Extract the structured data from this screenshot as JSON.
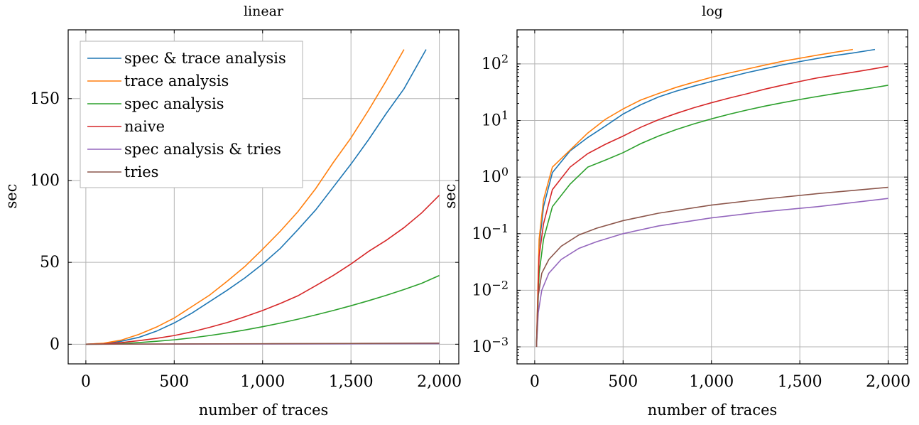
{
  "chart_data": [
    {
      "type": "line",
      "title": "linear",
      "xlabel": "number of traces",
      "ylabel": "sec",
      "xscale": "linear",
      "yscale": "linear",
      "xlim": [
        -100,
        2110
      ],
      "ylim": [
        -12,
        192
      ],
      "xticks": [
        0,
        500,
        1000,
        1500,
        2000
      ],
      "xtick_labels": [
        "0",
        "500",
        "1,000",
        "1,500",
        "2,000"
      ],
      "yticks": [
        0,
        50,
        100,
        150
      ],
      "ytick_labels": [
        "0",
        "50",
        "100",
        "150"
      ],
      "grid": true,
      "legend": {
        "position": "top-left",
        "entries": [
          "spec & trace analysis",
          "trace analysis",
          "spec analysis",
          "naive",
          "spec analysis & tries",
          "tries"
        ]
      },
      "series": [
        {
          "name": "spec & trace analysis",
          "color": "#1f77b4",
          "x": [
            0,
            100,
            200,
            300,
            400,
            500,
            600,
            700,
            800,
            900,
            1000,
            1100,
            1200,
            1300,
            1400,
            1500,
            1600,
            1700,
            1800,
            1925
          ],
          "y": [
            0,
            0.5,
            1.8,
            4.2,
            8,
            13,
            19,
            26,
            33,
            40.5,
            49,
            58.5,
            70,
            82,
            96,
            110,
            125,
            141,
            156,
            180
          ]
        },
        {
          "name": "trace analysis",
          "color": "#ff7f0e",
          "x": [
            0,
            100,
            200,
            300,
            400,
            500,
            600,
            700,
            800,
            900,
            1000,
            1100,
            1200,
            1300,
            1400,
            1500,
            1600,
            1700,
            1800
          ],
          "y": [
            0,
            0.6,
            2.5,
            6,
            10.5,
            16,
            23,
            30,
            38.5,
            47.5,
            58,
            69,
            81,
            95,
            111,
            126,
            143,
            161,
            180
          ]
        },
        {
          "name": "spec analysis",
          "color": "#2ca02c",
          "x": [
            0,
            100,
            200,
            300,
            400,
            500,
            600,
            700,
            800,
            900,
            1000,
            1100,
            1200,
            1300,
            1400,
            1500,
            1600,
            1700,
            1800,
            1900,
            2000
          ],
          "y": [
            0,
            0.05,
            0.35,
            1,
            1.8,
            2.7,
            3.9,
            5.3,
            6.9,
            8.7,
            10.7,
            12.9,
            15.3,
            17.9,
            20.6,
            23.5,
            26.6,
            29.9,
            33.4,
            37.2,
            42
          ]
        },
        {
          "name": "naive",
          "color": "#d62728",
          "x": [
            0,
            100,
            200,
            300,
            400,
            500,
            600,
            700,
            800,
            900,
            1000,
            1100,
            1200,
            1300,
            1400,
            1500,
            1600,
            1700,
            1800,
            1900,
            2000
          ],
          "y": [
            0,
            0.2,
            1,
            2.2,
            3.6,
            5.3,
            7.6,
            10.3,
            13.3,
            16.8,
            20.6,
            24.9,
            29.6,
            35.7,
            42,
            49,
            56.7,
            63.5,
            71.2,
            80.2,
            91
          ]
        },
        {
          "name": "spec analysis & tries",
          "color": "#9467bd",
          "x": [
            0,
            500,
            1000,
            1500,
            2000
          ],
          "y": [
            0,
            0.1,
            0.19,
            0.3,
            0.42
          ]
        },
        {
          "name": "tries",
          "color": "#8c564b",
          "x": [
            0,
            500,
            1000,
            1500,
            2000
          ],
          "y": [
            0,
            0.17,
            0.32,
            0.48,
            0.66
          ]
        }
      ]
    },
    {
      "type": "line",
      "title": "log",
      "xlabel": "number of traces",
      "ylabel": "sec",
      "xscale": "linear",
      "yscale": "log",
      "xlim": [
        -100,
        2110
      ],
      "ylim": [
        0.0005,
        400
      ],
      "xticks": [
        0,
        500,
        1000,
        1500,
        2000
      ],
      "xtick_labels": [
        "0",
        "500",
        "1,000",
        "1,500",
        "2,000"
      ],
      "yticks": [
        0.001,
        0.01,
        0.1,
        1,
        10,
        100
      ],
      "ytick_base": "10",
      "ytick_exponents": [
        "−3",
        "−2",
        "−1",
        "0",
        "1",
        "2"
      ],
      "grid": true,
      "series": [
        {
          "name": "spec & trace analysis",
          "color": "#1f77b4",
          "x": [
            10,
            25,
            50,
            100,
            200,
            300,
            400,
            500,
            600,
            700,
            800,
            900,
            1000,
            1100,
            1200,
            1300,
            1400,
            1500,
            1600,
            1700,
            1800,
            1925
          ],
          "y": [
            0.001,
            0.06,
            0.3,
            1.2,
            2.9,
            5,
            8,
            13,
            19,
            26,
            33,
            40.5,
            49,
            58.5,
            70,
            82,
            96,
            110,
            125,
            141,
            156,
            180
          ]
        },
        {
          "name": "trace analysis",
          "color": "#ff7f0e",
          "x": [
            10,
            25,
            50,
            100,
            200,
            300,
            400,
            500,
            600,
            700,
            800,
            900,
            1000,
            1100,
            1200,
            1300,
            1400,
            1500,
            1600,
            1700,
            1800
          ],
          "y": [
            0.001,
            0.08,
            0.4,
            1.5,
            3,
            6,
            10.5,
            16,
            23,
            30,
            38.5,
            47.5,
            58,
            69,
            81,
            95,
            111,
            126,
            143,
            161,
            180
          ]
        },
        {
          "name": "spec analysis",
          "color": "#2ca02c",
          "x": [
            10,
            25,
            50,
            100,
            200,
            300,
            400,
            500,
            600,
            700,
            800,
            900,
            1000,
            1100,
            1200,
            1300,
            1400,
            1500,
            1600,
            1700,
            1800,
            1900,
            2000
          ],
          "y": [
            0.001,
            0.02,
            0.08,
            0.3,
            0.75,
            1.5,
            2.0,
            2.7,
            3.9,
            5.3,
            6.9,
            8.7,
            10.7,
            12.9,
            15.3,
            17.9,
            20.6,
            23.5,
            26.6,
            29.9,
            33.4,
            37.2,
            42
          ]
        },
        {
          "name": "naive",
          "color": "#d62728",
          "x": [
            10,
            25,
            50,
            100,
            200,
            300,
            400,
            500,
            600,
            700,
            800,
            900,
            1000,
            1100,
            1200,
            1300,
            1400,
            1500,
            1600,
            1700,
            1800,
            1900,
            2000
          ],
          "y": [
            0.001,
            0.04,
            0.15,
            0.6,
            1.5,
            2.6,
            3.8,
            5.3,
            7.6,
            10.3,
            13.3,
            16.8,
            20.6,
            24.9,
            29.6,
            35.7,
            42,
            49,
            56.7,
            63.5,
            71.2,
            80.2,
            91
          ]
        },
        {
          "name": "spec analysis & tries",
          "color": "#9467bd",
          "x": [
            10,
            20,
            40,
            80,
            150,
            250,
            350,
            500,
            700,
            1000,
            1300,
            1600,
            2000
          ],
          "y": [
            0.001,
            0.004,
            0.01,
            0.02,
            0.035,
            0.055,
            0.072,
            0.1,
            0.137,
            0.19,
            0.245,
            0.3,
            0.42
          ]
        },
        {
          "name": "tries",
          "color": "#8c564b",
          "x": [
            10,
            20,
            40,
            80,
            150,
            250,
            350,
            500,
            700,
            1000,
            1300,
            1600,
            2000
          ],
          "y": [
            0.001,
            0.008,
            0.02,
            0.035,
            0.06,
            0.095,
            0.125,
            0.17,
            0.23,
            0.32,
            0.41,
            0.51,
            0.66
          ]
        }
      ]
    }
  ]
}
